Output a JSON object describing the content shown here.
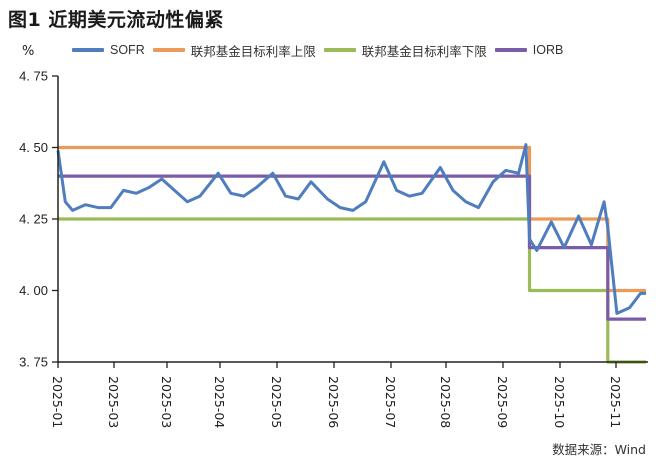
{
  "header": {
    "title": "图1  近期美元流动性偏紧",
    "unit": "%"
  },
  "legend": [
    {
      "label": "SOFR",
      "color": "#4f7dbd"
    },
    {
      "label": "联邦基金目标利率上限",
      "color": "#ec9a5a"
    },
    {
      "label": "联邦基金目标利率下限",
      "color": "#9bbb59"
    },
    {
      "label": "IORB",
      "color": "#7a5ca8"
    }
  ],
  "footer": {
    "source": "数据来源：Wind"
  },
  "axes": {
    "y_ticks": [
      "4. 75",
      "4. 50",
      "4. 25",
      "4. 00",
      "3. 75"
    ],
    "x_ticks": [
      "2025-01",
      "2025-03",
      "2025-03",
      "2025-04",
      "2025-05",
      "2025-06",
      "2025-07",
      "2025-08",
      "2025-09",
      "2025-10",
      "2025-11"
    ]
  },
  "chart_data": {
    "type": "line",
    "title": "图1  近期美元流动性偏紧",
    "xlabel": "",
    "ylabel": "%",
    "ylim": [
      3.75,
      4.75
    ],
    "y_ticks": [
      4.75,
      4.5,
      4.25,
      4.0,
      3.75
    ],
    "x_tick_labels": [
      "2025-01",
      "2025-03",
      "2025-03",
      "2025-04",
      "2025-05",
      "2025-06",
      "2025-07",
      "2025-08",
      "2025-09",
      "2025-10",
      "2025-11"
    ],
    "grid": false,
    "legend_position": "top",
    "source": "数据来源：Wind",
    "x": [
      "2025-01-02",
      "2025-01-06",
      "2025-01-10",
      "2025-01-17",
      "2025-01-24",
      "2025-01-31",
      "2025-02-07",
      "2025-02-14",
      "2025-02-21",
      "2025-02-28",
      "2025-03-07",
      "2025-03-14",
      "2025-03-21",
      "2025-03-31",
      "2025-04-07",
      "2025-04-14",
      "2025-04-21",
      "2025-04-30",
      "2025-05-07",
      "2025-05-14",
      "2025-05-21",
      "2025-05-30",
      "2025-06-06",
      "2025-06-13",
      "2025-06-20",
      "2025-06-30",
      "2025-07-07",
      "2025-07-14",
      "2025-07-21",
      "2025-07-31",
      "2025-08-07",
      "2025-08-14",
      "2025-08-21",
      "2025-08-29",
      "2025-09-05",
      "2025-09-12",
      "2025-09-16",
      "2025-09-18",
      "2025-09-22",
      "2025-09-30",
      "2025-10-07",
      "2025-10-15",
      "2025-10-22",
      "2025-10-29",
      "2025-10-31",
      "2025-11-05",
      "2025-11-12",
      "2025-11-18"
    ],
    "series": [
      {
        "name": "SOFR",
        "values": [
          4.49,
          4.31,
          4.28,
          4.3,
          4.29,
          4.29,
          4.35,
          4.34,
          4.36,
          4.39,
          4.35,
          4.31,
          4.33,
          4.41,
          4.34,
          4.33,
          4.36,
          4.41,
          4.33,
          4.32,
          4.38,
          4.32,
          4.29,
          4.28,
          4.31,
          4.45,
          4.35,
          4.33,
          4.34,
          4.43,
          4.35,
          4.31,
          4.29,
          4.38,
          4.42,
          4.41,
          4.51,
          4.18,
          4.14,
          4.24,
          4.15,
          4.26,
          4.16,
          4.31,
          4.22,
          3.92,
          3.94,
          3.99
        ]
      },
      {
        "name": "联邦基金目标利率上限",
        "values": [
          4.5,
          4.5,
          4.5,
          4.5,
          4.5,
          4.5,
          4.5,
          4.5,
          4.5,
          4.5,
          4.5,
          4.5,
          4.5,
          4.5,
          4.5,
          4.5,
          4.5,
          4.5,
          4.5,
          4.5,
          4.5,
          4.5,
          4.5,
          4.5,
          4.5,
          4.5,
          4.5,
          4.5,
          4.5,
          4.5,
          4.5,
          4.5,
          4.5,
          4.5,
          4.5,
          4.5,
          4.5,
          4.25,
          4.25,
          4.25,
          4.25,
          4.25,
          4.25,
          4.25,
          4.0,
          4.0,
          4.0,
          4.0
        ]
      },
      {
        "name": "联邦基金目标利率下限",
        "values": [
          4.25,
          4.25,
          4.25,
          4.25,
          4.25,
          4.25,
          4.25,
          4.25,
          4.25,
          4.25,
          4.25,
          4.25,
          4.25,
          4.25,
          4.25,
          4.25,
          4.25,
          4.25,
          4.25,
          4.25,
          4.25,
          4.25,
          4.25,
          4.25,
          4.25,
          4.25,
          4.25,
          4.25,
          4.25,
          4.25,
          4.25,
          4.25,
          4.25,
          4.25,
          4.25,
          4.25,
          4.25,
          4.0,
          4.0,
          4.0,
          4.0,
          4.0,
          4.0,
          4.0,
          3.75,
          3.75,
          3.75,
          3.75
        ]
      },
      {
        "name": "IORB",
        "values": [
          4.4,
          4.4,
          4.4,
          4.4,
          4.4,
          4.4,
          4.4,
          4.4,
          4.4,
          4.4,
          4.4,
          4.4,
          4.4,
          4.4,
          4.4,
          4.4,
          4.4,
          4.4,
          4.4,
          4.4,
          4.4,
          4.4,
          4.4,
          4.4,
          4.4,
          4.4,
          4.4,
          4.4,
          4.4,
          4.4,
          4.4,
          4.4,
          4.4,
          4.4,
          4.4,
          4.4,
          4.4,
          4.15,
          4.15,
          4.15,
          4.15,
          4.15,
          4.15,
          4.15,
          3.9,
          3.9,
          3.9,
          3.9
        ]
      }
    ]
  }
}
